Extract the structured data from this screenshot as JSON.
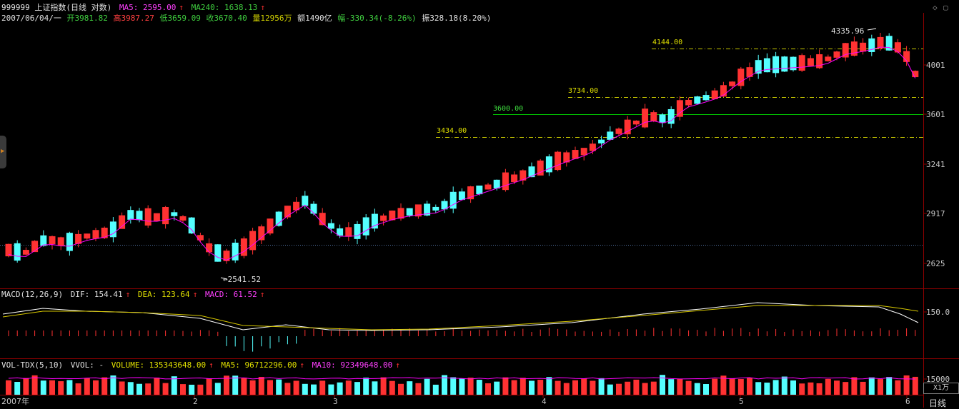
{
  "header": {
    "title": "999999 上证指数(日线 对数)",
    "ma5_label": "MA5: 2595.00",
    "ma240_label": "MA240: 1638.13",
    "date": "2007/06/04/一",
    "open": "开3981.82",
    "high": "高3987.27",
    "low": "低3659.09",
    "close": "收3670.40",
    "volume": "量12956万",
    "amount": "额1490亿",
    "change": "幅-330.34(-8.26%)",
    "amplitude": "振328.18(8.20%)"
  },
  "price_axis": [
    "4001",
    "3601",
    "3241",
    "2917",
    "2625"
  ],
  "price_annotations": {
    "high_mark": "4335.96",
    "low_mark": "2541.52",
    "line_4144": "4144.00",
    "line_3734": "3734.00",
    "line_3600": "3600.00",
    "line_3434": "3434.00"
  },
  "macd": {
    "label": "MACD(12,26,9)",
    "dif": "DIF: 154.41",
    "dea": "DEA: 123.64",
    "macd": "MACD: 61.52",
    "axis": "150.0"
  },
  "vol": {
    "label": "VOL-TDX(5,10)",
    "vol": "VVOL: -",
    "volume": "VOLUME: 135343648.00",
    "ma5": "MA5: 96712296.00",
    "ma10": "MA10: 92349648.00",
    "axis": "15000",
    "unit": "X1万"
  },
  "date_axis": [
    "2007年",
    "2",
    "3",
    "4",
    "5",
    "6"
  ],
  "tab_label": "日线",
  "colors": {
    "up": "#ff3232",
    "down": "#54ffff",
    "ma_line": "#ff00ff",
    "ref_line": "#ffff00",
    "support": "#00c800",
    "grid": "#7a1010"
  }
}
